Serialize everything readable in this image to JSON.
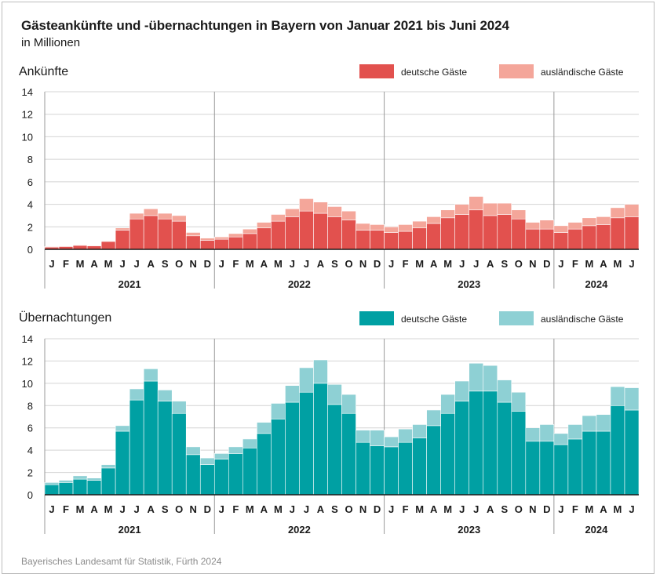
{
  "title": "Gästeankünfte und -übernachtungen in Bayern von Januar 2021 bis Juni 2024",
  "subtitle": "in Millionen",
  "source": "Bayerisches Landesamt für Statistik, Fürth 2024",
  "colors": {
    "arrivals_domestic": "#e2514e",
    "arrivals_foreign": "#f4a69a",
    "nights_domestic": "#00a0a3",
    "nights_foreign": "#8ed0d4",
    "grid": "#d4d4d4",
    "separator": "#9a9a9a"
  },
  "chart_data": [
    {
      "type": "bar",
      "stacked": true,
      "title": "Ankünfte",
      "ylim": [
        0,
        14
      ],
      "yticks": [
        0,
        2,
        4,
        6,
        8,
        10,
        12,
        14
      ],
      "grid": true,
      "legend_position": "top-right",
      "month_labels": [
        "J",
        "F",
        "M",
        "A",
        "M",
        "J",
        "J",
        "A",
        "S",
        "O",
        "N",
        "D",
        "J",
        "F",
        "M",
        "A",
        "M",
        "J",
        "J",
        "A",
        "S",
        "O",
        "N",
        "D",
        "J",
        "F",
        "M",
        "A",
        "M",
        "J",
        "J",
        "A",
        "S",
        "O",
        "N",
        "D",
        "J",
        "F",
        "M",
        "A",
        "M",
        "J"
      ],
      "years": [
        {
          "label": "2021",
          "months": 12
        },
        {
          "label": "2022",
          "months": 12
        },
        {
          "label": "2023",
          "months": 12
        },
        {
          "label": "2024",
          "months": 6
        }
      ],
      "series": [
        {
          "name": "deutsche Gäste",
          "values": [
            0.2,
            0.25,
            0.35,
            0.3,
            0.7,
            1.7,
            2.7,
            3.0,
            2.7,
            2.5,
            1.2,
            0.8,
            0.9,
            1.1,
            1.4,
            1.9,
            2.5,
            2.9,
            3.4,
            3.2,
            2.9,
            2.6,
            1.7,
            1.7,
            1.5,
            1.6,
            1.9,
            2.3,
            2.8,
            3.1,
            3.5,
            3.0,
            3.1,
            2.7,
            1.8,
            1.8,
            1.5,
            1.8,
            2.1,
            2.2,
            2.8,
            2.9
          ]
        },
        {
          "name": "ausländische Gäste",
          "values": [
            0.05,
            0.05,
            0.05,
            0.05,
            0.05,
            0.2,
            0.5,
            0.6,
            0.5,
            0.5,
            0.3,
            0.2,
            0.2,
            0.3,
            0.4,
            0.5,
            0.6,
            0.7,
            1.1,
            1.0,
            0.9,
            0.8,
            0.6,
            0.5,
            0.5,
            0.6,
            0.6,
            0.6,
            0.7,
            0.9,
            1.2,
            1.1,
            1.0,
            0.8,
            0.6,
            0.8,
            0.6,
            0.6,
            0.7,
            0.7,
            0.9,
            1.1
          ]
        }
      ]
    },
    {
      "type": "bar",
      "stacked": true,
      "title": "Übernachtungen",
      "ylim": [
        0,
        14
      ],
      "yticks": [
        0,
        2,
        4,
        6,
        8,
        10,
        12,
        14
      ],
      "grid": true,
      "legend_position": "top-right",
      "month_labels": [
        "J",
        "F",
        "M",
        "A",
        "M",
        "J",
        "J",
        "A",
        "S",
        "O",
        "N",
        "D",
        "J",
        "F",
        "M",
        "A",
        "M",
        "J",
        "J",
        "A",
        "S",
        "O",
        "N",
        "D",
        "J",
        "F",
        "M",
        "A",
        "M",
        "J",
        "J",
        "A",
        "S",
        "O",
        "N",
        "D",
        "J",
        "F",
        "M",
        "A",
        "M",
        "J"
      ],
      "years": [
        {
          "label": "2021",
          "months": 12
        },
        {
          "label": "2022",
          "months": 12
        },
        {
          "label": "2023",
          "months": 12
        },
        {
          "label": "2024",
          "months": 6
        }
      ],
      "series": [
        {
          "name": "deutsche Gäste",
          "values": [
            0.9,
            1.1,
            1.4,
            1.3,
            2.4,
            5.7,
            8.5,
            10.2,
            8.4,
            7.3,
            3.6,
            2.7,
            3.2,
            3.7,
            4.2,
            5.5,
            6.8,
            8.3,
            9.2,
            10.0,
            8.1,
            7.3,
            4.7,
            4.4,
            4.3,
            4.7,
            5.1,
            6.2,
            7.3,
            8.4,
            9.3,
            9.3,
            8.3,
            7.5,
            4.8,
            4.8,
            4.5,
            5.0,
            5.7,
            5.7,
            8.0,
            7.6
          ]
        },
        {
          "name": "ausländische Gäste",
          "values": [
            0.2,
            0.2,
            0.3,
            0.2,
            0.3,
            0.5,
            1.0,
            1.1,
            1.0,
            1.1,
            0.7,
            0.6,
            0.5,
            0.6,
            0.8,
            1.0,
            1.4,
            1.5,
            2.2,
            2.1,
            1.8,
            1.7,
            1.1,
            1.4,
            0.9,
            1.2,
            1.2,
            1.4,
            1.7,
            1.8,
            2.5,
            2.3,
            2.0,
            1.7,
            1.2,
            1.5,
            1.0,
            1.3,
            1.4,
            1.5,
            1.7,
            2.0
          ]
        }
      ]
    }
  ]
}
